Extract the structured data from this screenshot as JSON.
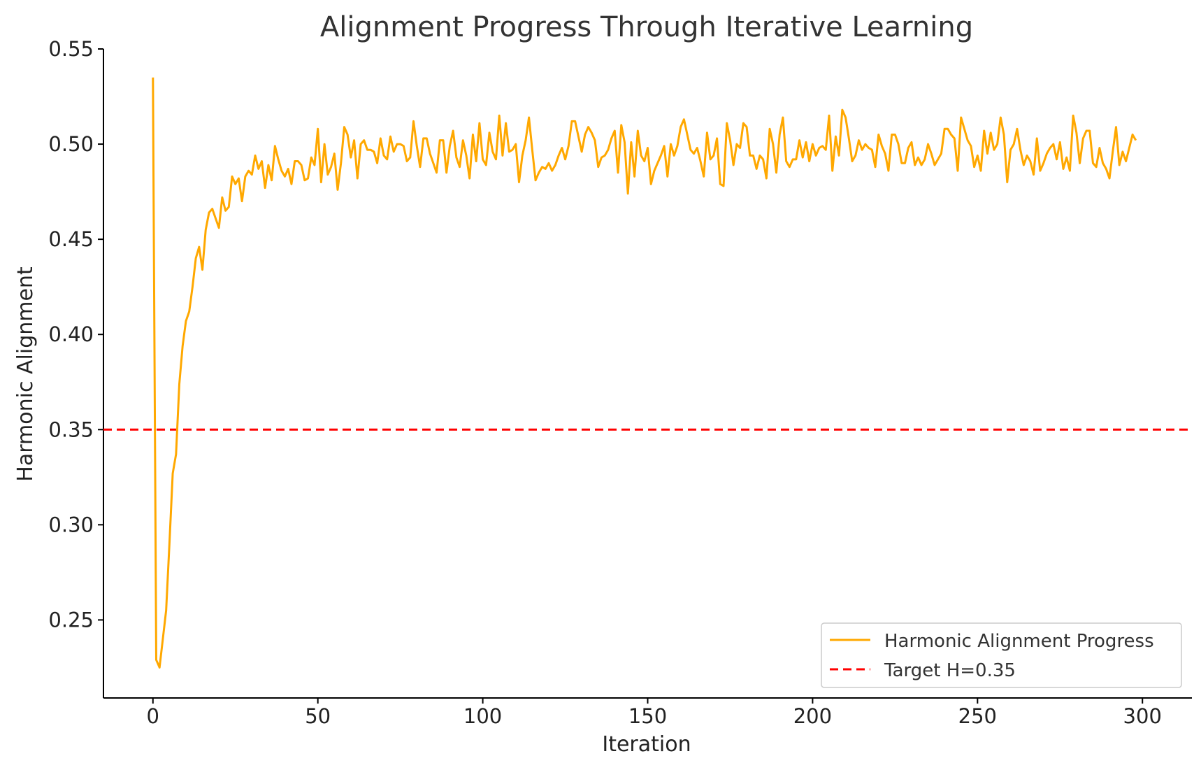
{
  "chart_data": {
    "type": "line",
    "title": "Alignment Progress Through Iterative Learning",
    "xlabel": "Iteration",
    "ylabel": "Harmonic Alignment",
    "xlim": [
      -15,
      315
    ],
    "ylim": [
      0.209,
      0.55
    ],
    "xticks": [
      0,
      50,
      100,
      150,
      200,
      250,
      300
    ],
    "yticks": [
      0.25,
      0.3,
      0.35,
      0.4,
      0.45,
      0.5,
      0.55
    ],
    "ytick_labels": [
      "0.25",
      "0.30",
      "0.35",
      "0.40",
      "0.45",
      "0.50",
      "0.55"
    ],
    "xtick_labels": [
      "0",
      "50",
      "100",
      "150",
      "200",
      "250",
      "300"
    ],
    "grid": false,
    "legend_position": "bottom-right",
    "series": [
      {
        "name": "Harmonic Alignment Progress",
        "color": "#FFA800",
        "style": "solid",
        "x_start": 0,
        "x_step": 1,
        "values": [
          0.535,
          0.229,
          0.225,
          0.24,
          0.255,
          0.29,
          0.327,
          0.337,
          0.374,
          0.394,
          0.407,
          0.412,
          0.425,
          0.44,
          0.446,
          0.434,
          0.455,
          0.464,
          0.466,
          0.461,
          0.456,
          0.472,
          0.465,
          0.467,
          0.483,
          0.479,
          0.482,
          0.47,
          0.483,
          0.486,
          0.484,
          0.494,
          0.487,
          0.491,
          0.477,
          0.489,
          0.481,
          0.499,
          0.492,
          0.486,
          0.483,
          0.487,
          0.479,
          0.491,
          0.491,
          0.489,
          0.481,
          0.482,
          0.493,
          0.489,
          0.508,
          0.48,
          0.5,
          0.484,
          0.488,
          0.495,
          0.476,
          0.49,
          0.509,
          0.505,
          0.493,
          0.502,
          0.482,
          0.5,
          0.502,
          0.497,
          0.497,
          0.496,
          0.49,
          0.503,
          0.494,
          0.492,
          0.504,
          0.496,
          0.5,
          0.5,
          0.499,
          0.491,
          0.493,
          0.512,
          0.499,
          0.488,
          0.503,
          0.503,
          0.495,
          0.49,
          0.485,
          0.502,
          0.502,
          0.485,
          0.499,
          0.507,
          0.493,
          0.488,
          0.502,
          0.494,
          0.482,
          0.505,
          0.491,
          0.511,
          0.492,
          0.489,
          0.506,
          0.496,
          0.492,
          0.515,
          0.494,
          0.511,
          0.496,
          0.497,
          0.5,
          0.48,
          0.494,
          0.502,
          0.514,
          0.497,
          0.481,
          0.485,
          0.488,
          0.487,
          0.49,
          0.486,
          0.489,
          0.494,
          0.498,
          0.492,
          0.499,
          0.512,
          0.512,
          0.504,
          0.496,
          0.505,
          0.509,
          0.506,
          0.502,
          0.488,
          0.493,
          0.494,
          0.497,
          0.503,
          0.507,
          0.485,
          0.51,
          0.501,
          0.474,
          0.501,
          0.483,
          0.507,
          0.494,
          0.491,
          0.498,
          0.479,
          0.486,
          0.49,
          0.494,
          0.499,
          0.483,
          0.5,
          0.494,
          0.499,
          0.509,
          0.513,
          0.505,
          0.497,
          0.495,
          0.498,
          0.491,
          0.483,
          0.506,
          0.492,
          0.494,
          0.503,
          0.479,
          0.478,
          0.511,
          0.502,
          0.489,
          0.5,
          0.498,
          0.511,
          0.509,
          0.494,
          0.494,
          0.487,
          0.494,
          0.492,
          0.482,
          0.508,
          0.5,
          0.485,
          0.505,
          0.514,
          0.491,
          0.488,
          0.492,
          0.492,
          0.502,
          0.493,
          0.501,
          0.491,
          0.5,
          0.494,
          0.498,
          0.499,
          0.497,
          0.515,
          0.486,
          0.504,
          0.494,
          0.518,
          0.514,
          0.503,
          0.491,
          0.494,
          0.502,
          0.497,
          0.5,
          0.498,
          0.497,
          0.488,
          0.505,
          0.499,
          0.495,
          0.486,
          0.505,
          0.505,
          0.5,
          0.49,
          0.49,
          0.498,
          0.501,
          0.489,
          0.493,
          0.489,
          0.492,
          0.5,
          0.495,
          0.489,
          0.492,
          0.495,
          0.508,
          0.508,
          0.505,
          0.503,
          0.486,
          0.514,
          0.508,
          0.502,
          0.499,
          0.488,
          0.494,
          0.486,
          0.507,
          0.495,
          0.506,
          0.497,
          0.5,
          0.514,
          0.505,
          0.48,
          0.497,
          0.5,
          0.508,
          0.497,
          0.489,
          0.494,
          0.491,
          0.484,
          0.503,
          0.486,
          0.49,
          0.495,
          0.498,
          0.5,
          0.492,
          0.501,
          0.487,
          0.493,
          0.486,
          0.515,
          0.506,
          0.49,
          0.503,
          0.507,
          0.507,
          0.49,
          0.488,
          0.498,
          0.49,
          0.487,
          0.482,
          0.496,
          0.509,
          0.489,
          0.496,
          0.491,
          0.498,
          0.505,
          0.502
        ]
      },
      {
        "name": "Target H=0.35",
        "color": "#FF0000",
        "style": "dashed",
        "constant": 0.35
      }
    ]
  }
}
